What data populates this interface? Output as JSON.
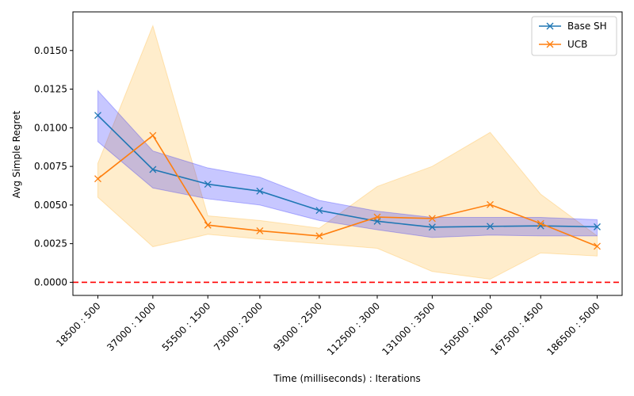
{
  "chart_data": {
    "type": "line",
    "xlabel": "Time (milliseconds) : Iterations",
    "ylabel": "Avg Simple Regret",
    "categories": [
      "18500 : 500",
      "37000 : 1000",
      "55500 : 1500",
      "73000 : 2000",
      "93000 : 2500",
      "112500 : 3000",
      "131000 : 3500",
      "150500 : 4000",
      "167500 : 4500",
      "186500 : 5000"
    ],
    "x_positions": [
      18500,
      37000,
      55500,
      73000,
      93000,
      112500,
      131000,
      150500,
      167500,
      186500
    ],
    "ylim": [
      -0.00085,
      0.0175
    ],
    "yticks": [
      0.0,
      0.0025,
      0.005,
      0.0075,
      0.01,
      0.0125,
      0.015
    ],
    "ytick_labels": [
      "0.0000",
      "0.0025",
      "0.0050",
      "0.0075",
      "0.0100",
      "0.0125",
      "0.0150"
    ],
    "grid": false,
    "legend_position": "top-right",
    "reference_line": {
      "y": 0.0,
      "color": "#ff0000",
      "style": "dashed"
    },
    "series": [
      {
        "name": "Base SH",
        "color": "#1f77b4",
        "band_color": "#0000ff",
        "marker": "x",
        "values": [
          0.0108,
          0.0073,
          0.00635,
          0.0059,
          0.00465,
          0.00395,
          0.00357,
          0.00362,
          0.00365,
          0.00359
        ],
        "lower": [
          0.0091,
          0.0061,
          0.0054,
          0.005,
          0.004,
          0.0034,
          0.0029,
          0.00305,
          0.003,
          0.003
        ],
        "upper": [
          0.0124,
          0.0085,
          0.0074,
          0.0068,
          0.0053,
          0.0046,
          0.0042,
          0.0042,
          0.0042,
          0.00405
        ]
      },
      {
        "name": "UCB",
        "color": "#ff7f0e",
        "band_color": "#ffa500",
        "marker": "x",
        "values": [
          0.0067,
          0.0095,
          0.0037,
          0.00333,
          0.003,
          0.00422,
          0.00413,
          0.00503,
          0.0038,
          0.00233
        ],
        "lower": [
          0.0055,
          0.0023,
          0.0031,
          0.0028,
          0.0025,
          0.0022,
          0.0007,
          0.0002,
          0.0019,
          0.0017
        ],
        "upper": [
          0.0077,
          0.0166,
          0.0043,
          0.004,
          0.0035,
          0.0062,
          0.0075,
          0.0097,
          0.0057,
          0.003
        ]
      }
    ]
  }
}
